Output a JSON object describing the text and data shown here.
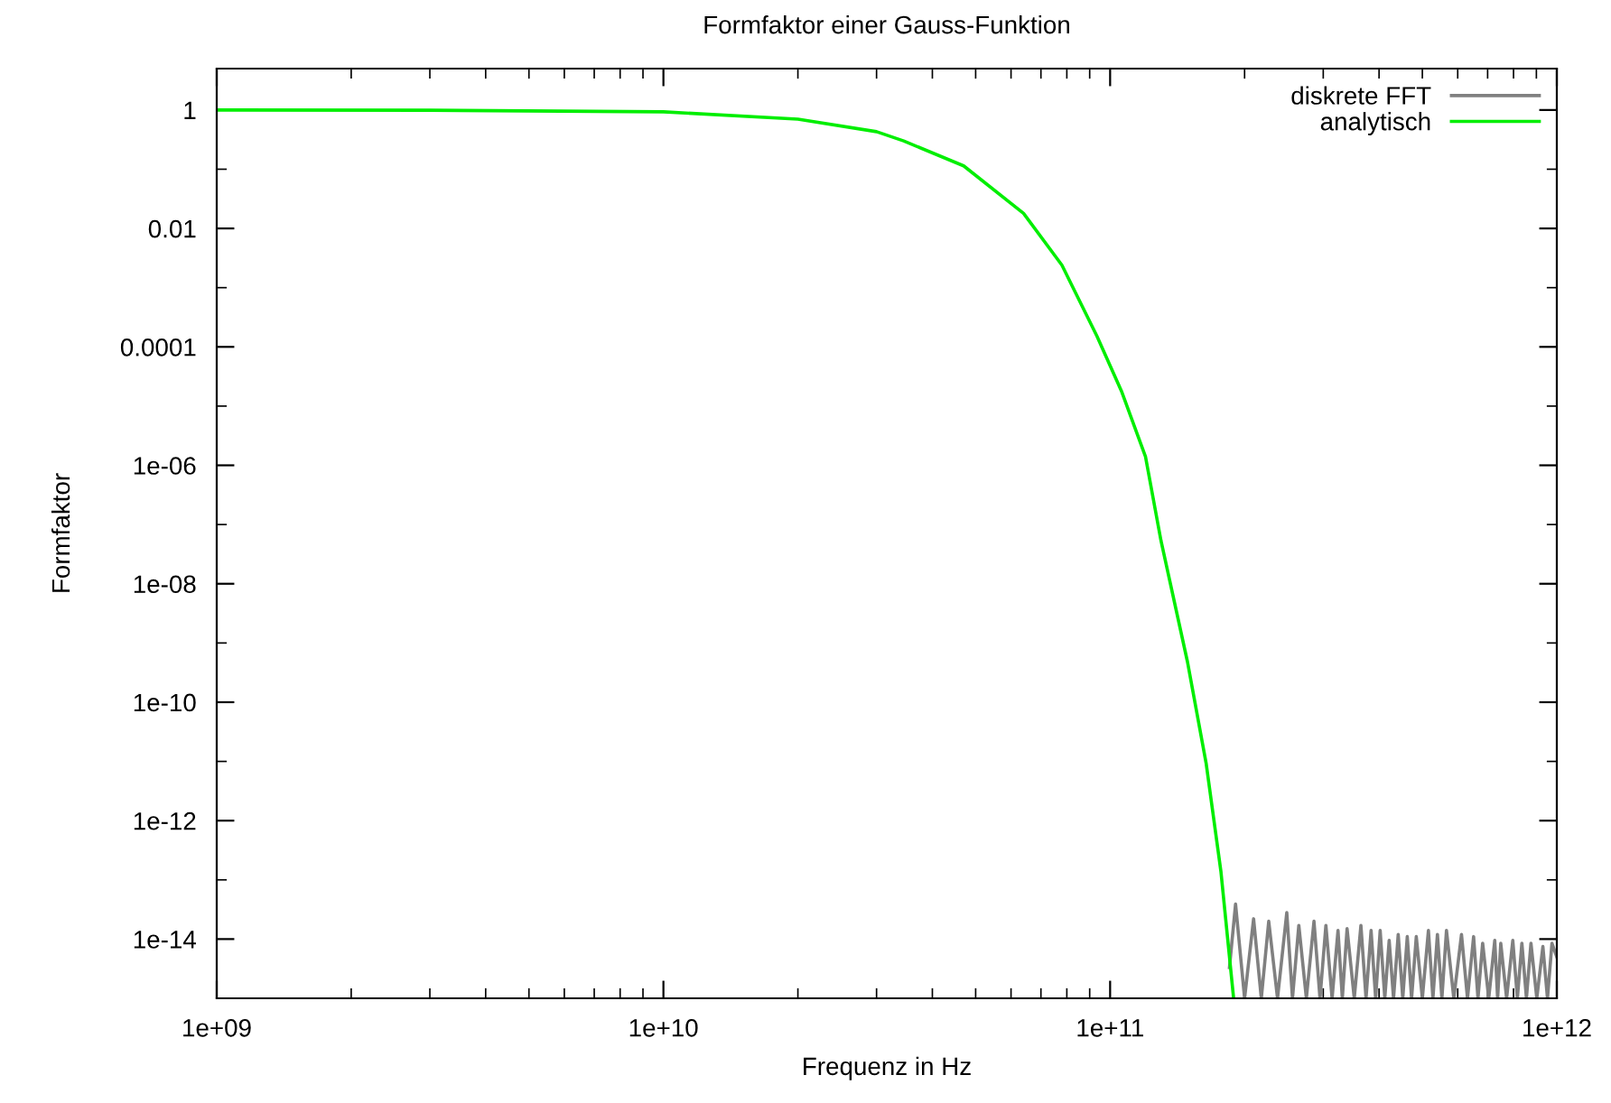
{
  "chart_data": {
    "type": "line",
    "title": "Formfaktor einer Gauss-Funktion",
    "xlabel": "Frequenz in Hz",
    "ylabel": "Formfaktor",
    "log": "xy",
    "grid": false,
    "legend": "top right",
    "marker": "none",
    "line_style": "solid",
    "xlim": [
      1000000000.0,
      1000000000000.0
    ],
    "xticks": [
      {
        "value": 1000000000.0,
        "label": "1e+09"
      },
      {
        "value": 2000000000.0,
        "label": null
      },
      {
        "value": 3000000000.0,
        "label": null
      },
      {
        "value": 4000000000.0,
        "label": null
      },
      {
        "value": 5000000000.0,
        "label": null
      },
      {
        "value": 6000000000.0,
        "label": null
      },
      {
        "value": 7000000000.0,
        "label": null
      },
      {
        "value": 8000000000.0,
        "label": null
      },
      {
        "value": 9000000000.0,
        "label": null
      },
      {
        "value": 10000000000.0,
        "label": "1e+10"
      },
      {
        "value": 20000000000.0,
        "label": null
      },
      {
        "value": 30000000000.0,
        "label": null
      },
      {
        "value": 40000000000.0,
        "label": null
      },
      {
        "value": 50000000000.0,
        "label": null
      },
      {
        "value": 60000000000.0,
        "label": null
      },
      {
        "value": 70000000000.0,
        "label": null
      },
      {
        "value": 80000000000.0,
        "label": null
      },
      {
        "value": 90000000000.0,
        "label": null
      },
      {
        "value": 100000000000.0,
        "label": "1e+11"
      },
      {
        "value": 200000000000.0,
        "label": null
      },
      {
        "value": 300000000000.0,
        "label": null
      },
      {
        "value": 400000000000.0,
        "label": null
      },
      {
        "value": 500000000000.0,
        "label": null
      },
      {
        "value": 600000000000.0,
        "label": null
      },
      {
        "value": 700000000000.0,
        "label": null
      },
      {
        "value": 800000000000.0,
        "label": null
      },
      {
        "value": 900000000000.0,
        "label": null
      },
      {
        "value": 1000000000000.0,
        "label": "1e+12"
      }
    ],
    "ylim": [
      1e-15,
      5
    ],
    "yticks": [
      {
        "value": 1,
        "label": "1"
      },
      {
        "value": 0.1,
        "label": null
      },
      {
        "value": 0.01,
        "label": "0.01"
      },
      {
        "value": 0.001,
        "label": null
      },
      {
        "value": 0.0001,
        "label": "0.0001"
      },
      {
        "value": 1e-05,
        "label": null
      },
      {
        "value": 1e-06,
        "label": "1e-06"
      },
      {
        "value": 1e-07,
        "label": null
      },
      {
        "value": 1e-08,
        "label": "1e-08"
      },
      {
        "value": 1e-09,
        "label": null
      },
      {
        "value": 1e-10,
        "label": "1e-10"
      },
      {
        "value": 1e-11,
        "label": null
      },
      {
        "value": 1e-12,
        "label": "1e-12"
      },
      {
        "value": 1e-13,
        "label": null
      },
      {
        "value": 1e-14,
        "label": "1e-14"
      },
      {
        "value": 1e-15,
        "label": null
      }
    ],
    "series": [
      {
        "name": "diskrete FFT",
        "color": "#808080",
        "x": [
          185000000000.0,
          190900000000.0,
          200000000000.0,
          209500000000.0,
          218000000000.0,
          226500000000.0,
          237000000000.0,
          248600000000.0,
          256000000000.0,
          264500000000.0,
          275000000000.0,
          286000000000.0,
          295000000000.0,
          304100000000.0,
          314000000000.0,
          323700000000.0,
          331000000000.0,
          339200000000.0,
          352000000000.0,
          364300000000.0,
          374000000000.0,
          383900000000.0,
          393000000000.0,
          402300000000.0,
          412000000000.0,
          421400000000.0,
          431000000000.0,
          441500000000.0,
          452000000000.0,
          462600000000.0,
          473000000000.0,
          484600000000.0,
          500000000000.0,
          515900000000.0,
          528000000000.0,
          540400000000.0,
          553000000000.0,
          566200000000.0,
          588000000000.0,
          611800000000.0,
          631000000000.0,
          651200000000.0,
          666000000000.0,
          682300000000.0,
          704000000000.0,
          726200000000.0,
          737000000000.0,
          749000000000.0,
          772000000000.0,
          797000000000.0,
          816000000000.0,
          835200000000.0,
          855000000000.0,
          875200000000.0,
          902000000000.0,
          930700000000.0,
          953000000000.0,
          975200000000.0,
          1000000000000.0
        ],
        "values": [
          3.3e-15,
          3.9e-14,
          1e-15,
          2.2e-14,
          1e-15,
          2e-14,
          1e-15,
          2.8e-14,
          1e-15,
          1.7e-14,
          1e-15,
          2e-14,
          1e-15,
          1.7e-14,
          1e-15,
          1.4e-14,
          1e-15,
          1.5e-14,
          1e-15,
          1.7e-14,
          1e-15,
          1.4e-14,
          1e-15,
          1.4e-14,
          1e-15,
          9.5e-15,
          1e-15,
          1.2e-14,
          1e-15,
          1.1e-14,
          1e-15,
          1.1e-14,
          1e-15,
          1.4e-14,
          1e-15,
          1.2e-14,
          1e-15,
          1.4e-14,
          1e-15,
          1.2e-14,
          1e-15,
          1.1e-14,
          1e-15,
          8.5e-15,
          1e-15,
          9.5e-15,
          1e-15,
          8.5e-15,
          1e-15,
          9.5e-15,
          1e-15,
          8.5e-15,
          1e-15,
          8.5e-15,
          1e-15,
          7.5e-15,
          1e-15,
          8.5e-15,
          5e-15
        ]
      },
      {
        "name": "analytisch",
        "color": "#00ee00",
        "x": [
          1000000000.0,
          3000000000.0,
          10000000000.0,
          20000000000.0,
          30000000000.0,
          34500000000.0,
          47000000000.0,
          64000000000.0,
          78000000000.0,
          93500000000.0,
          106000000000.0,
          120000000000.0,
          130000000000.0,
          149000000000.0,
          164000000000.0,
          177000000000.0,
          189000000000.0
        ],
        "values": [
          1,
          0.99,
          0.93,
          0.7,
          0.43,
          0.3,
          0.114,
          0.018,
          0.0024,
          0.00015,
          1.8e-05,
          1.4e-06,
          5.3e-08,
          4.8e-10,
          9.4e-12,
          1.4e-13,
          1e-15
        ]
      }
    ]
  }
}
